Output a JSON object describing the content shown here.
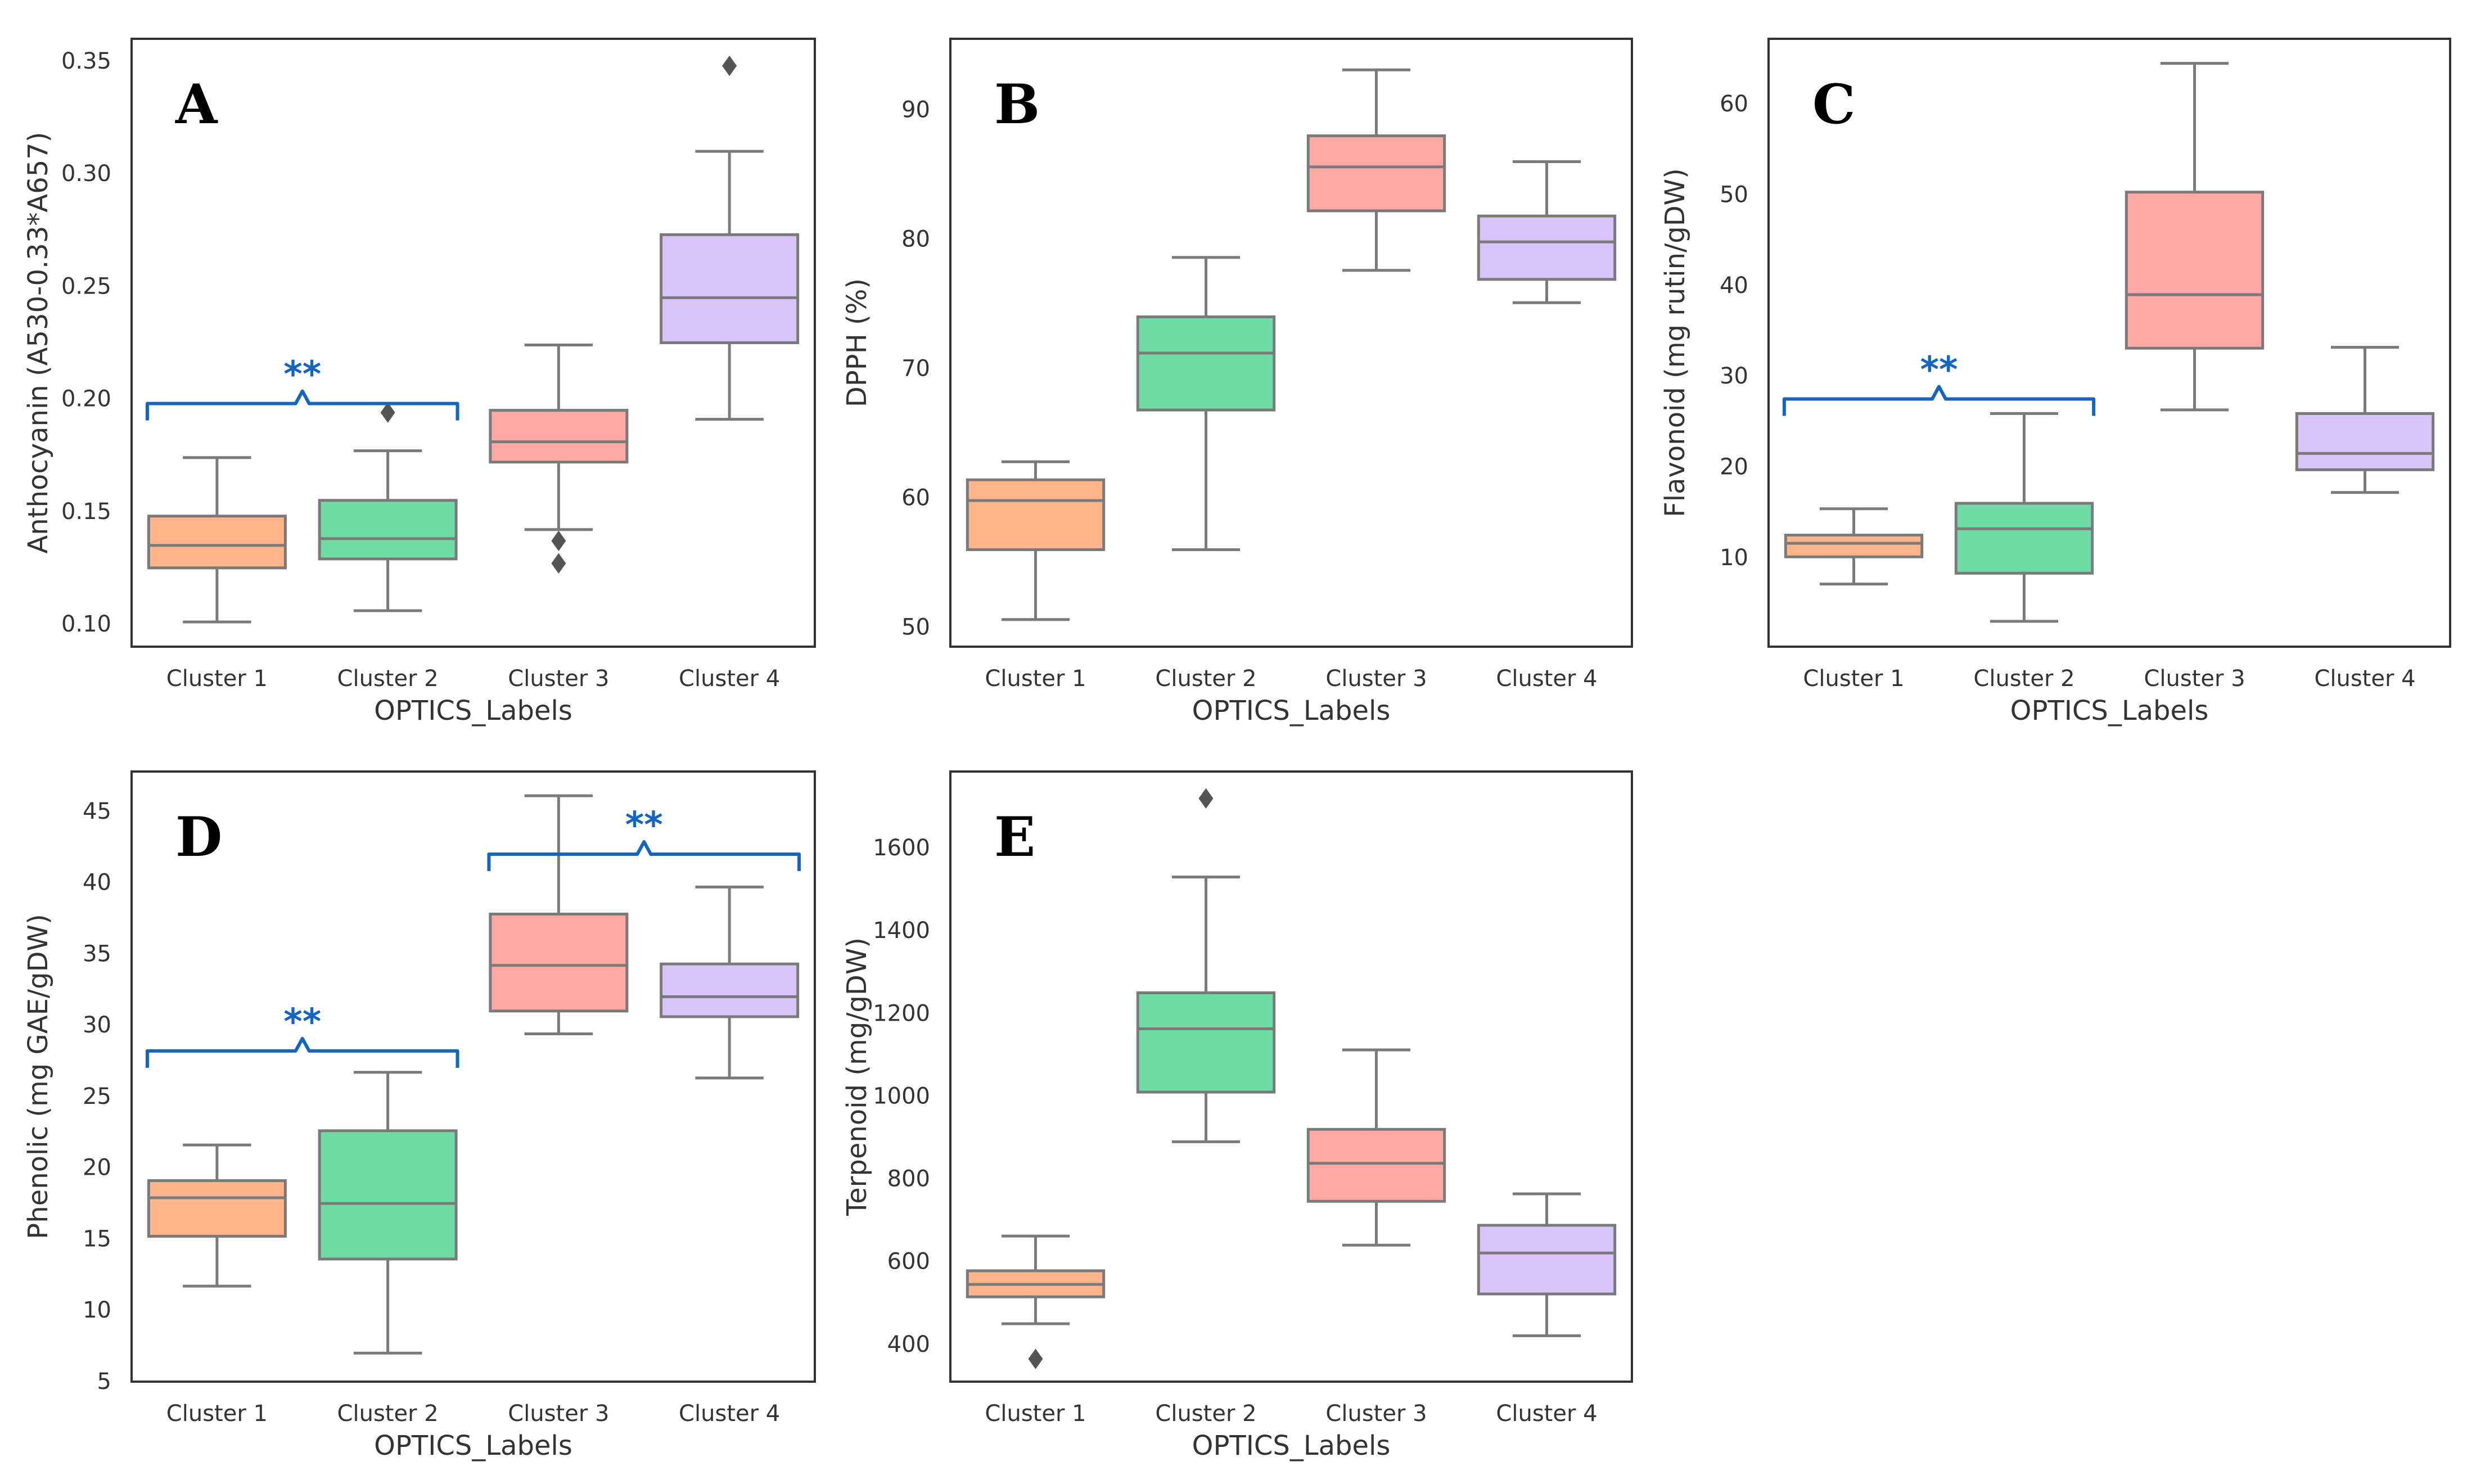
{
  "colors": {
    "cluster_fills": [
      "#ffb48a",
      "#6fdca3",
      "#ffa8a4",
      "#d9c4fa"
    ],
    "line": "#7a7a7a",
    "significance": "#1565c0",
    "frame": "#333333"
  },
  "chart_data": [
    {
      "type": "box",
      "panel": "A",
      "xlabel": "OPTICS_Labels",
      "ylabel": "Anthocyanin (A530-0.33*A657)",
      "categories": [
        "Cluster 1",
        "Cluster 2",
        "Cluster 3",
        "Cluster 4"
      ],
      "ylim": [
        0.09,
        0.36
      ],
      "yticks": [
        0.1,
        0.15,
        0.2,
        0.25,
        0.3,
        0.35
      ],
      "ytick_labels": [
        "0.10",
        "0.15",
        "0.20",
        "0.25",
        "0.30",
        "0.35"
      ],
      "boxes": [
        {
          "whislo": 0.101,
          "q1": 0.125,
          "med": 0.135,
          "q3": 0.148,
          "whishi": 0.174,
          "fliers": []
        },
        {
          "whislo": 0.106,
          "q1": 0.129,
          "med": 0.138,
          "q3": 0.155,
          "whishi": 0.177,
          "fliers": [
            0.194
          ]
        },
        {
          "whislo": 0.142,
          "q1": 0.172,
          "med": 0.181,
          "q3": 0.195,
          "whishi": 0.224,
          "fliers": [
            0.137,
            0.127
          ]
        },
        {
          "whislo": 0.191,
          "q1": 0.225,
          "med": 0.245,
          "q3": 0.273,
          "whishi": 0.31,
          "fliers": [
            0.348
          ]
        }
      ],
      "significance": [
        {
          "from": 0,
          "to": 1,
          "y": 0.198,
          "label": "**"
        }
      ]
    },
    {
      "type": "box",
      "panel": "B",
      "xlabel": "OPTICS_Labels",
      "ylabel": "DPPH (%)",
      "categories": [
        "Cluster 1",
        "Cluster 2",
        "Cluster 3",
        "Cluster 4"
      ],
      "ylim": [
        48.5,
        95.5
      ],
      "yticks": [
        50,
        60,
        70,
        80,
        90
      ],
      "ytick_labels": [
        "50",
        "60",
        "70",
        "80",
        "90"
      ],
      "boxes": [
        {
          "whislo": 50.6,
          "q1": 56.0,
          "med": 59.8,
          "q3": 61.4,
          "whishi": 62.8,
          "fliers": []
        },
        {
          "whislo": 56.0,
          "q1": 66.8,
          "med": 71.2,
          "q3": 74.0,
          "whishi": 78.6,
          "fliers": []
        },
        {
          "whislo": 77.6,
          "q1": 82.2,
          "med": 85.6,
          "q3": 88.0,
          "whishi": 93.1,
          "fliers": []
        },
        {
          "whislo": 75.1,
          "q1": 76.9,
          "med": 79.8,
          "q3": 81.8,
          "whishi": 86.0,
          "fliers": []
        }
      ],
      "significance": []
    },
    {
      "type": "box",
      "panel": "C",
      "xlabel": "OPTICS_Labels",
      "ylabel": "Flavonoid (mg rutin/gDW)",
      "categories": [
        "Cluster 1",
        "Cluster 2",
        "Cluster 3",
        "Cluster 4"
      ],
      "ylim": [
        0.2,
        67.2
      ],
      "yticks": [
        10,
        20,
        30,
        40,
        50,
        60
      ],
      "ytick_labels": [
        "10",
        "20",
        "30",
        "40",
        "50",
        "60"
      ],
      "boxes": [
        {
          "whislo": 7.1,
          "q1": 10.1,
          "med": 11.6,
          "q3": 12.5,
          "whishi": 15.4,
          "fliers": []
        },
        {
          "whislo": 3.0,
          "q1": 8.3,
          "med": 13.2,
          "q3": 16.0,
          "whishi": 25.9,
          "fliers": []
        },
        {
          "whislo": 26.3,
          "q1": 33.1,
          "med": 39.0,
          "q3": 50.3,
          "whishi": 64.5,
          "fliers": []
        },
        {
          "whislo": 17.2,
          "q1": 19.7,
          "med": 21.5,
          "q3": 25.9,
          "whishi": 33.2,
          "fliers": []
        }
      ],
      "significance": [
        {
          "from": 0,
          "to": 1,
          "y": 27.5,
          "label": "**"
        }
      ]
    },
    {
      "type": "box",
      "panel": "D",
      "xlabel": "OPTICS_Labels",
      "ylabel": "Phenolic (mg GAE/gDW)",
      "categories": [
        "Cluster 1",
        "Cluster 2",
        "Cluster 3",
        "Cluster 4"
      ],
      "ylim": [
        5,
        47.8
      ],
      "yticks": [
        5,
        10,
        15,
        20,
        25,
        30,
        35,
        40,
        45
      ],
      "ytick_labels": [
        "5",
        "10",
        "15",
        "20",
        "25",
        "30",
        "35",
        "40",
        "45"
      ],
      "boxes": [
        {
          "whislo": 11.7,
          "q1": 15.2,
          "med": 17.9,
          "q3": 19.1,
          "whishi": 21.6,
          "fliers": []
        },
        {
          "whislo": 7.0,
          "q1": 13.6,
          "med": 17.5,
          "q3": 22.6,
          "whishi": 26.7,
          "fliers": []
        },
        {
          "whislo": 29.4,
          "q1": 31.0,
          "med": 34.2,
          "q3": 37.8,
          "whishi": 46.1,
          "fliers": []
        },
        {
          "whislo": 26.3,
          "q1": 30.6,
          "med": 32.0,
          "q3": 34.3,
          "whishi": 39.7,
          "fliers": []
        }
      ],
      "significance": [
        {
          "from": 0,
          "to": 1,
          "y": 28.2,
          "label": "**"
        },
        {
          "from": 2,
          "to": 3,
          "y": 42.0,
          "label": "**"
        }
      ]
    },
    {
      "type": "box",
      "panel": "E",
      "xlabel": "OPTICS_Labels",
      "ylabel": "Terpenoid (mg/gDW)",
      "categories": [
        "Cluster 1",
        "Cluster 2",
        "Cluster 3",
        "Cluster 4"
      ],
      "ylim": [
        310,
        1785
      ],
      "yticks": [
        400,
        600,
        800,
        1000,
        1200,
        1400,
        1600
      ],
      "ytick_labels": [
        "400",
        "600",
        "800",
        "1000",
        "1200",
        "1400",
        "1600"
      ],
      "boxes": [
        {
          "whislo": 450,
          "q1": 515,
          "med": 545,
          "q3": 578,
          "whishi": 662,
          "fliers": [
            365
          ]
        },
        {
          "whislo": 890,
          "q1": 1010,
          "med": 1163,
          "q3": 1250,
          "whishi": 1530,
          "fliers": [
            1720
          ]
        },
        {
          "whislo": 640,
          "q1": 746,
          "med": 838,
          "q3": 920,
          "whishi": 1112,
          "fliers": []
        },
        {
          "whislo": 421,
          "q1": 522,
          "med": 621,
          "q3": 688,
          "whishi": 764,
          "fliers": []
        }
      ],
      "significance": []
    }
  ]
}
